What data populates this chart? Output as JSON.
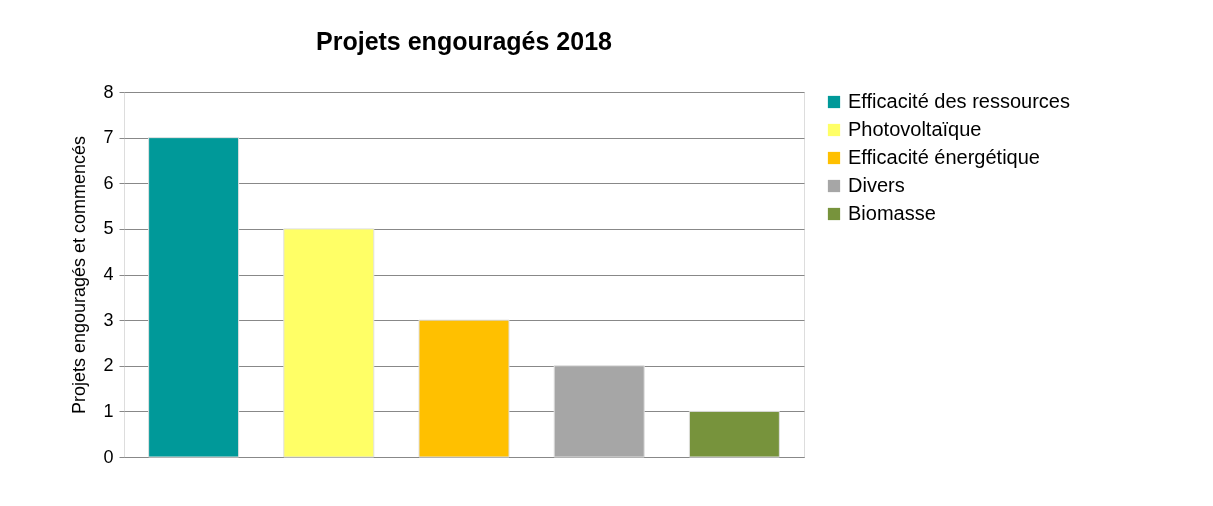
{
  "chart_data": {
    "type": "bar",
    "title": "Projets engouragés 2018",
    "ylabel": "Projets engouragés et commencés",
    "categories": [
      null,
      null,
      null,
      null,
      null
    ],
    "series": [
      {
        "name": "Efficacité des ressources",
        "color": "#009999",
        "values": [
          7,
          null,
          null,
          null,
          null
        ]
      },
      {
        "name": "Photovoltaïque",
        "color": "#ffff66",
        "values": [
          null,
          5,
          null,
          null,
          null
        ]
      },
      {
        "name": "Efficacité énergétique",
        "color": "#ffc000",
        "values": [
          null,
          null,
          3,
          null,
          null
        ]
      },
      {
        "name": "Divers",
        "color": "#a6a6a6",
        "values": [
          null,
          null,
          null,
          2,
          null
        ]
      },
      {
        "name": "Biomasse",
        "color": "#77933c",
        "values": [
          null,
          null,
          null,
          null,
          1
        ]
      }
    ],
    "ylim": [
      0,
      8
    ],
    "yticks": [
      0,
      1,
      2,
      3,
      4,
      5,
      6,
      7,
      8
    ],
    "grid": "y",
    "legend": "right",
    "tick_labels": "y"
  }
}
